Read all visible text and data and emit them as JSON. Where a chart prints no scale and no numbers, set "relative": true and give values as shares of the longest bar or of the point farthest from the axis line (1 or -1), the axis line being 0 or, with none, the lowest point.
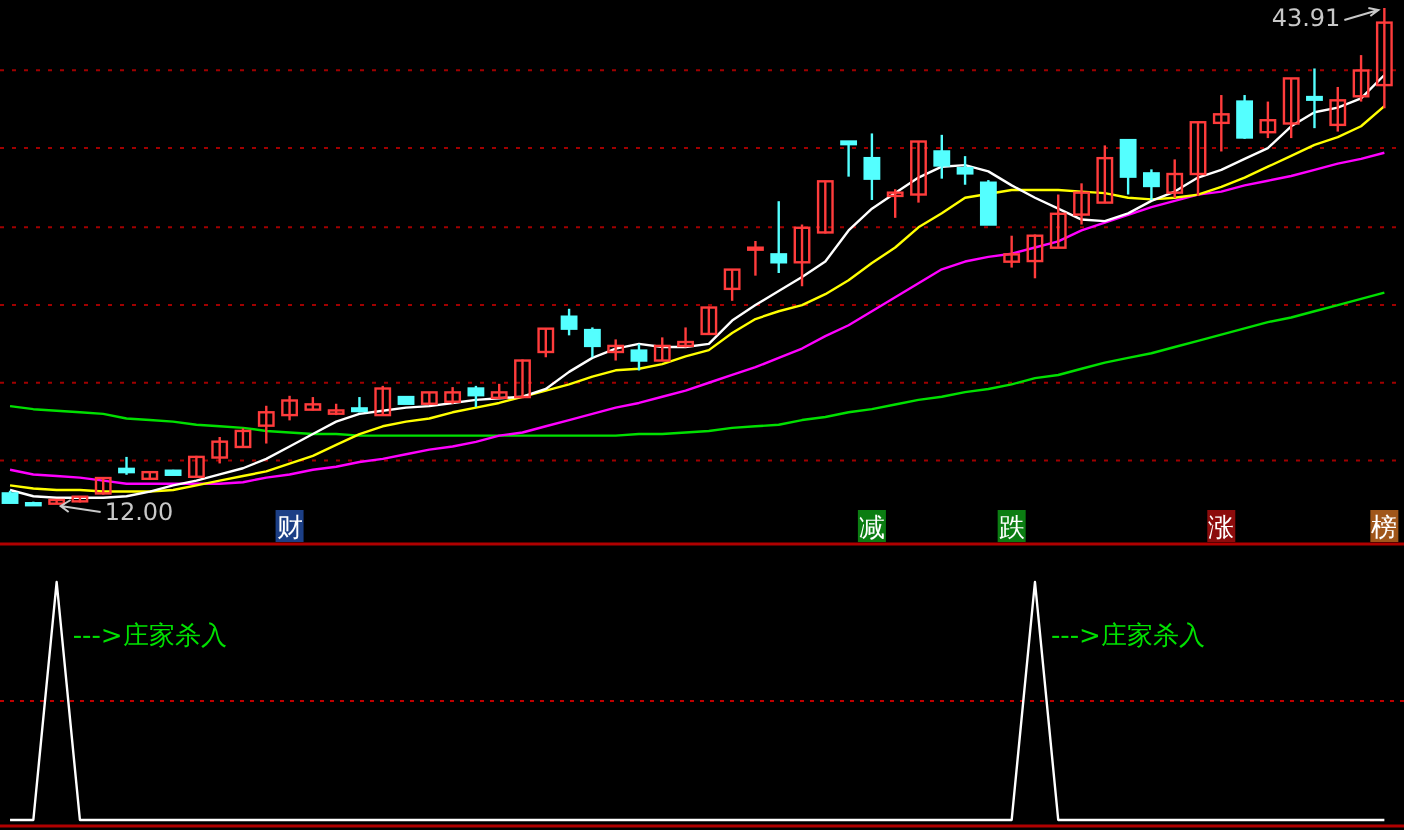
{
  "chart_data": [
    {
      "type": "candlestick",
      "categories": [
        null,
        null,
        null,
        null,
        null,
        null,
        null,
        null,
        null,
        null,
        null,
        null,
        null,
        null,
        null,
        null,
        null,
        null,
        null,
        null,
        null,
        null,
        null,
        null,
        null,
        null,
        null,
        null,
        null,
        null,
        null,
        null,
        null,
        null,
        null,
        null,
        null,
        null,
        null,
        null,
        null,
        null,
        null,
        null,
        null,
        null,
        null,
        null,
        null,
        null,
        null,
        null,
        null,
        null,
        null,
        null,
        null,
        null,
        null,
        null
      ],
      "ohlc": [
        [
          12.68,
          12.85,
          12.05,
          12.08
        ],
        [
          12.05,
          12.15,
          12.0,
          12.02
        ],
        [
          12.02,
          12.3,
          12.0,
          12.26
        ],
        [
          12.17,
          12.5,
          12.1,
          12.47
        ],
        [
          12.68,
          13.7,
          12.6,
          13.67
        ],
        [
          14.26,
          15.03,
          13.88,
          14.05
        ],
        [
          13.62,
          14.1,
          13.6,
          14.05
        ],
        [
          14.14,
          14.2,
          13.85,
          13.88
        ],
        [
          13.75,
          15.1,
          13.7,
          15.03
        ],
        [
          14.99,
          16.31,
          14.61,
          16.01
        ],
        [
          15.67,
          16.87,
          15.67,
          16.7
        ],
        [
          17.04,
          18.32,
          15.89,
          17.9
        ],
        [
          17.72,
          18.96,
          17.38,
          18.66
        ],
        [
          18.07,
          18.88,
          18.02,
          18.41
        ],
        [
          17.81,
          18.45,
          17.72,
          18.02
        ],
        [
          18.15,
          18.88,
          17.89,
          17.98
        ],
        [
          17.72,
          19.6,
          17.72,
          19.43
        ],
        [
          18.88,
          18.9,
          18.45,
          18.45
        ],
        [
          18.45,
          19.2,
          18.4,
          19.18
        ],
        [
          18.58,
          19.52,
          18.45,
          19.18
        ],
        [
          19.43,
          19.6,
          18.24,
          19.0
        ],
        [
          18.83,
          19.73,
          18.8,
          19.18
        ],
        [
          18.88,
          21.3,
          18.8,
          21.23
        ],
        [
          21.78,
          23.3,
          21.44,
          23.28
        ],
        [
          24.05,
          24.56,
          22.85,
          23.28
        ],
        [
          23.19,
          23.36,
          21.44,
          22.17
        ],
        [
          21.78,
          22.59,
          21.23,
          22.17
        ],
        [
          21.87,
          22.3,
          20.59,
          21.23
        ],
        [
          21.23,
          22.72,
          21.2,
          22.17
        ],
        [
          22.17,
          23.36,
          22.08,
          22.42
        ],
        [
          22.94,
          24.7,
          22.9,
          24.64
        ],
        [
          25.84,
          27.1,
          25.07,
          27.08
        ],
        [
          28.4,
          28.92,
          26.69,
          28.49
        ],
        [
          28.06,
          31.48,
          26.86,
          27.55
        ],
        [
          27.55,
          29.98,
          26.01,
          29.77
        ],
        [
          29.47,
          32.8,
          29.4,
          32.76
        ],
        [
          35.32,
          35.35,
          33.06,
          35.15
        ],
        [
          34.25,
          35.84,
          31.56,
          32.93
        ],
        [
          31.82,
          32.25,
          30.41,
          32.03
        ],
        [
          31.91,
          35.35,
          31.39,
          35.32
        ],
        [
          34.68,
          35.75,
          32.93,
          33.78
        ],
        [
          33.61,
          34.38,
          32.54,
          33.27
        ],
        [
          32.67,
          32.84,
          29.95,
          29.98
        ],
        [
          27.59,
          29.26,
          27.21,
          28.06
        ],
        [
          27.63,
          29.34,
          26.52,
          29.26
        ],
        [
          28.49,
          31.91,
          28.45,
          30.67
        ],
        [
          30.62,
          32.63,
          29.98,
          32.03
        ],
        [
          31.39,
          35.07,
          31.35,
          34.25
        ],
        [
          35.41,
          35.45,
          31.91,
          33.06
        ],
        [
          33.27,
          33.53,
          31.56,
          32.46
        ],
        [
          32.03,
          34.17,
          31.69,
          33.23
        ],
        [
          33.23,
          36.6,
          31.82,
          36.56
        ],
        [
          36.52,
          38.31,
          34.68,
          37.07
        ],
        [
          37.89,
          38.31,
          35.49,
          35.58
        ],
        [
          35.92,
          37.89,
          35.54,
          36.69
        ],
        [
          36.48,
          39.4,
          35.54,
          39.38
        ],
        [
          38.18,
          40.02,
          36.18,
          38.01
        ],
        [
          36.39,
          38.83,
          35.96,
          37.97
        ],
        [
          38.23,
          40.88,
          37.89,
          39.89
        ],
        [
          38.95,
          43.91,
          37.46,
          42.97
        ]
      ],
      "series": [
        {
          "type": "line",
          "color": "#00e000",
          "values": [
            18.3,
            18.1,
            18.0,
            17.9,
            17.8,
            17.5,
            17.4,
            17.3,
            17.1,
            17.0,
            16.9,
            16.7,
            16.6,
            16.5,
            16.5,
            16.4,
            16.4,
            16.4,
            16.4,
            16.4,
            16.4,
            16.4,
            16.4,
            16.4,
            16.4,
            16.4,
            16.4,
            16.5,
            16.5,
            16.6,
            16.7,
            16.9,
            17.0,
            17.1,
            17.4,
            17.6,
            17.9,
            18.1,
            18.4,
            18.7,
            18.9,
            19.2,
            19.4,
            19.7,
            20.1,
            20.3,
            20.7,
            21.1,
            21.4,
            21.7,
            22.1,
            22.5,
            22.9,
            23.3,
            23.7,
            24.0,
            24.4,
            24.8,
            25.2,
            25.6
          ]
        },
        {
          "type": "line",
          "color": "#ff00ff",
          "values": [
            14.2,
            13.9,
            13.8,
            13.7,
            13.5,
            13.3,
            13.3,
            13.3,
            13.3,
            13.3,
            13.4,
            13.7,
            13.9,
            14.2,
            14.4,
            14.7,
            14.9,
            15.2,
            15.5,
            15.7,
            16.0,
            16.4,
            16.6,
            17.0,
            17.4,
            17.8,
            18.2,
            18.5,
            18.9,
            19.3,
            19.8,
            20.3,
            20.8,
            21.4,
            22.0,
            22.8,
            23.5,
            24.4,
            25.3,
            26.2,
            27.1,
            27.6,
            27.9,
            28.1,
            28.5,
            28.9,
            29.6,
            30.1,
            30.6,
            31.1,
            31.5,
            31.9,
            32.1,
            32.5,
            32.8,
            33.1,
            33.5,
            33.9,
            34.2,
            34.6
          ]
        },
        {
          "type": "line",
          "color": "#ffff00",
          "values": [
            13.2,
            13.0,
            12.9,
            12.9,
            12.8,
            12.8,
            12.8,
            12.9,
            13.2,
            13.5,
            13.8,
            14.1,
            14.6,
            15.1,
            15.8,
            16.5,
            17.0,
            17.3,
            17.5,
            17.9,
            18.2,
            18.5,
            18.9,
            19.3,
            19.7,
            20.2,
            20.6,
            20.7,
            21.0,
            21.5,
            21.9,
            23.0,
            23.9,
            24.4,
            24.8,
            25.5,
            26.4,
            27.5,
            28.5,
            29.8,
            30.7,
            31.7,
            null,
            32.2,
            32.2,
            32.2,
            32.1,
            32.0,
            31.7,
            31.6,
            31.7,
            31.9,
            32.4,
            33.0,
            33.7,
            34.4,
            35.1,
            35.6,
            36.3,
            37.6
          ]
        },
        {
          "type": "line",
          "color": "#ffffff",
          "values": [
            12.9,
            12.5,
            12.4,
            12.4,
            12.4,
            12.5,
            12.8,
            13.2,
            13.5,
            13.9,
            14.3,
            14.9,
            15.7,
            16.5,
            17.3,
            17.8,
            18.0,
            18.2,
            18.3,
            18.5,
            18.7,
            18.8,
            18.9,
            19.4,
            20.5,
            21.4,
            22.0,
            22.3,
            22.1,
            22.1,
            22.3,
            23.8,
            24.8,
            25.7,
            26.6,
            27.6,
            29.6,
            31.0,
            32.0,
            33.0,
            33.7,
            33.8,
            33.4,
            32.5,
            31.7,
            31.0,
            30.3,
            30.2,
            30.7,
            31.5,
            32.1,
            33.0,
            33.5,
            34.2,
            34.9,
            36.3,
            37.2,
            37.5,
            38.1,
            39.6
          ]
        }
      ],
      "yticks": [
        {
          "value": 14.8,
          "label": null
        },
        {
          "value": 19.8,
          "label": null
        },
        {
          "value": 24.8,
          "label": null
        },
        {
          "value": 29.8,
          "label": null
        },
        {
          "value": 34.9,
          "label": null
        },
        {
          "value": 39.9,
          "label": null
        }
      ],
      "grid": "y",
      "annotations": [
        "43.91",
        "12.00",
        "财",
        "减",
        "跌",
        "涨",
        "榜"
      ]
    },
    {
      "type": "line",
      "categories": [
        null,
        null,
        null,
        null,
        null,
        null,
        null,
        null,
        null,
        null,
        null,
        null,
        null,
        null,
        null,
        null,
        null,
        null,
        null,
        null,
        null,
        null,
        null,
        null,
        null,
        null,
        null,
        null,
        null,
        null,
        null,
        null,
        null,
        null,
        null,
        null,
        null,
        null,
        null,
        null,
        null,
        null,
        null,
        null,
        null,
        null,
        null,
        null,
        null,
        null,
        null,
        null,
        null,
        null,
        null,
        null,
        null,
        null,
        null,
        null
      ],
      "relative": true,
      "series": [
        {
          "color": "#ffffff",
          "values": [
            0,
            0,
            1,
            0,
            0,
            0,
            0,
            0,
            0,
            0,
            0,
            0,
            0,
            0,
            0,
            0,
            0,
            0,
            0,
            0,
            0,
            0,
            0,
            0,
            0,
            0,
            0,
            0,
            0,
            0,
            0,
            0,
            0,
            0,
            0,
            0,
            0,
            0,
            0,
            0,
            0,
            0,
            0,
            0,
            1,
            0,
            0,
            0,
            0,
            0,
            0,
            0,
            0,
            0,
            0,
            0,
            0,
            0,
            0,
            0
          ]
        }
      ],
      "ref_lines": [
        {
          "axis": "y",
          "value": 0.5,
          "color": "#c00000",
          "line_style": "dotted"
        }
      ],
      "annotations": [
        "--->庄家杀入",
        "--->庄家杀入"
      ]
    }
  ]
}
